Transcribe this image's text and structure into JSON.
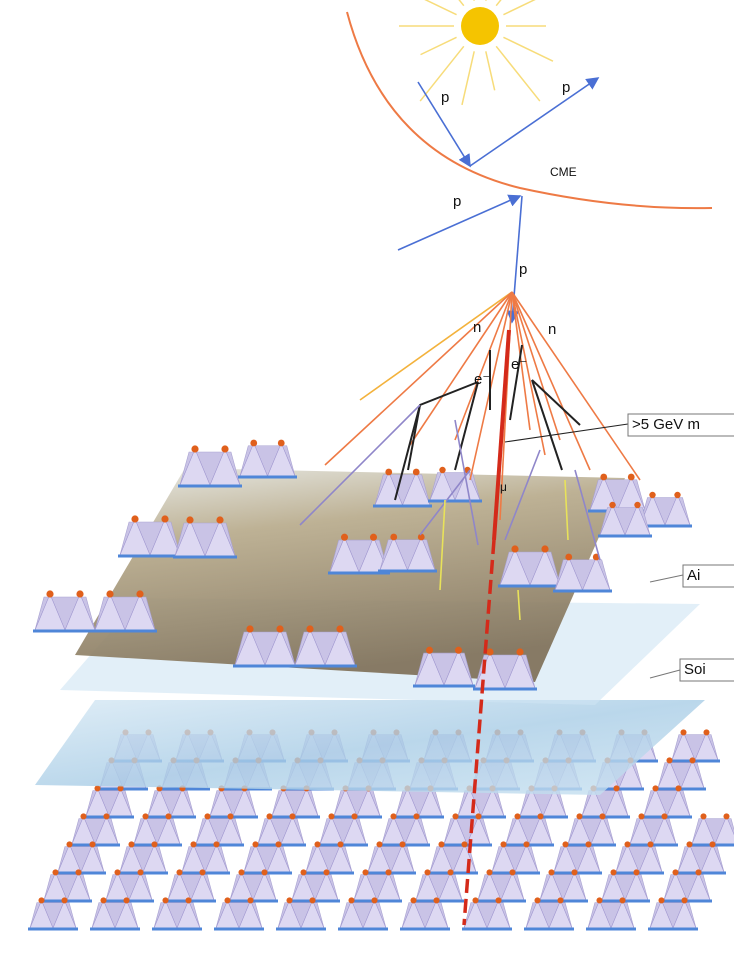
{
  "sun": {
    "protons": [
      "p",
      "p",
      "p",
      "p"
    ],
    "event": "CME"
  },
  "shower": {
    "neutrons": [
      "n",
      "n"
    ],
    "electrons": [
      "e⁻",
      "e⁻"
    ],
    "muon": "μ"
  },
  "callouts": [
    ">5 GeV m",
    "Ai",
    "Soi"
  ]
}
